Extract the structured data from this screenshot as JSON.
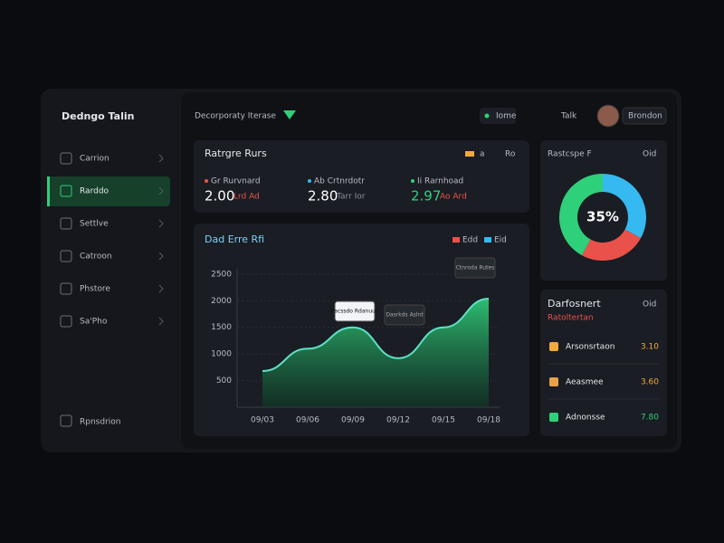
{
  "sidebar": {
    "logo": "Dedngo Talin",
    "nav": [
      "Carrion",
      "Rarddo",
      "Settlve",
      "Catroon",
      "Phstore",
      "Sa'Pho"
    ],
    "footer": "Rpnsdrion"
  },
  "topbar": {
    "title": "Decorporaty Iterase",
    "pill": "Iome",
    "link": "Talk",
    "user": "Brondon"
  },
  "stats": {
    "title": "Ratrgre Rurs",
    "legend": [
      "a",
      "Ro"
    ],
    "items": [
      {
        "label": "Gr Rurvnard",
        "value": "2.00",
        "delta": "Lrd Ad"
      },
      {
        "label": "Ab Crtnrdotr",
        "value": "2.80",
        "delta": "Tarr Ior"
      },
      {
        "label": "Ii Rarnhoad",
        "value": "2.97",
        "delta": "Ao Ard"
      }
    ]
  },
  "chart": {
    "type": "area",
    "title": "Dad Erre Rfi",
    "legend": [
      "Edd",
      "Eid"
    ],
    "categories": [
      "09/03",
      "09/06",
      "09/09",
      "09/12",
      "09/15",
      "09/18"
    ],
    "values": [
      680,
      1100,
      1500,
      920,
      1500,
      2040
    ],
    "color": "#2fd07a",
    "ylim": [
      0,
      2600
    ],
    "yticks": [
      500,
      1000,
      1500,
      2000,
      2500
    ],
    "grid": true,
    "tooltips": [
      "Pacssdo Rdanuus",
      "Dasrkds Aslrd",
      "Ctnroda Rutes"
    ]
  },
  "donut": {
    "type": "pie",
    "title": "Rastcspe F",
    "menu": "Oid",
    "center": "35%",
    "values": [
      33,
      25,
      42
    ],
    "colors": [
      "#35b9f0",
      "#e9524a",
      "#2fd07a"
    ]
  },
  "list": {
    "title": "Darfosnert",
    "subtitle": "Ratoltertan",
    "menu": "Oid",
    "rows": [
      {
        "name": "Arsonsrtaon",
        "value": "3.10"
      },
      {
        "name": "Aeasmee",
        "value": "3.60"
      },
      {
        "name": "Adnonsse",
        "value": "7.80"
      }
    ]
  }
}
